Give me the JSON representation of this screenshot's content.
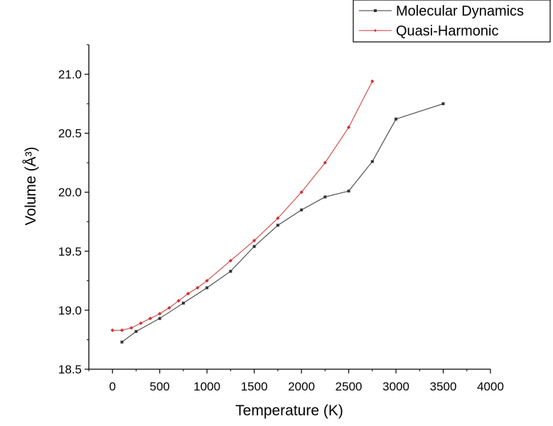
{
  "chart_data": {
    "type": "line",
    "xlabel": "Temperature (K)",
    "ylabel": "Volume (Å³)",
    "xlim": [
      -250,
      4000
    ],
    "ylim": [
      18.5,
      21.25
    ],
    "xticks": [
      0,
      500,
      1000,
      1500,
      2000,
      2500,
      3000,
      3500,
      4000
    ],
    "yticks": [
      18.5,
      19.0,
      19.5,
      20.0,
      20.5,
      21.0
    ],
    "ytick_labels": [
      "18.5",
      "19.0",
      "19.5",
      "20.0",
      "20.5",
      "21.0"
    ],
    "legend_position": "top-right",
    "grid": false,
    "series": [
      {
        "name": "Molecular Dynamics",
        "color": "#333333",
        "marker": "square",
        "x": [
          100,
          250,
          500,
          750,
          1000,
          1250,
          1500,
          1750,
          2000,
          2250,
          2500,
          2750,
          3000,
          3500
        ],
        "y": [
          18.73,
          18.82,
          18.93,
          19.06,
          19.19,
          19.33,
          19.54,
          19.72,
          19.85,
          19.96,
          20.01,
          20.26,
          20.62,
          20.75
        ]
      },
      {
        "name": "Quasi-Harmonic",
        "color": "#d03030",
        "marker": "diamond",
        "x": [
          0,
          100,
          200,
          300,
          400,
          500,
          600,
          700,
          800,
          900,
          1000,
          1250,
          1500,
          1750,
          2000,
          2250,
          2500,
          2750
        ],
        "y": [
          18.83,
          18.83,
          18.85,
          18.89,
          18.93,
          18.97,
          19.02,
          19.08,
          19.14,
          19.19,
          19.25,
          19.42,
          19.59,
          19.78,
          20.0,
          20.25,
          20.55,
          20.94
        ]
      }
    ]
  }
}
